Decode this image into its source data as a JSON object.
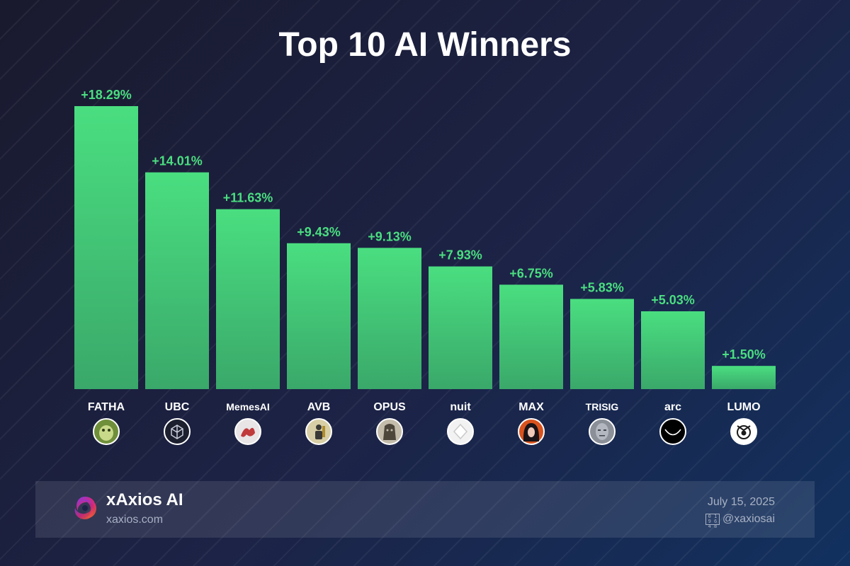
{
  "title": "Top 10 AI Winners",
  "chart_data": {
    "type": "bar",
    "title": "Top 10 AI Winners",
    "xlabel": "",
    "ylabel": "",
    "categories": [
      "FATHA",
      "UBC",
      "MemesAI",
      "AVB",
      "OPUS",
      "nuit",
      "MAX",
      "TRISIG",
      "arc",
      "LUMO"
    ],
    "values": [
      18.29,
      14.01,
      11.63,
      9.43,
      9.13,
      7.93,
      6.75,
      5.83,
      5.03,
      1.5
    ],
    "value_labels": [
      "+18.29%",
      "+14.01%",
      "+11.63%",
      "+9.43%",
      "+9.13%",
      "+7.93%",
      "+6.75%",
      "+5.83%",
      "+5.03%",
      "+1.50%"
    ],
    "ylim": [
      0,
      18.29
    ],
    "grid": false,
    "legend": "none",
    "bar_color_top": "#4ade80",
    "bar_color_bottom": "#3aa86a",
    "value_label_color": "#4ade80",
    "icons": [
      {
        "name": "frog-avatar-icon",
        "bg": "#6f8f3a",
        "fg": "#c8d98a"
      },
      {
        "name": "cube-logo-icon",
        "bg": "#1b1f2e",
        "fg": "#c8ccd8"
      },
      {
        "name": "red-dragon-icon",
        "bg": "#e9e4e6",
        "fg": "#c0393b"
      },
      {
        "name": "golden-figure-icon",
        "bg": "#d8cfa6",
        "fg": "#3b3a36"
      },
      {
        "name": "stone-idol-icon",
        "bg": "#c4bcab",
        "fg": "#4d463b"
      },
      {
        "name": "white-crystal-icon",
        "bg": "#f2f2f2",
        "fg": "#c9c9c9"
      },
      {
        "name": "anime-girl-icon",
        "bg": "#d9531e",
        "fg": "#1a1418"
      },
      {
        "name": "grey-face-icon",
        "bg": "#8a8f98",
        "fg": "#3f444c"
      },
      {
        "name": "smile-curve-icon",
        "bg": "#000000",
        "fg": "#ffffff"
      },
      {
        "name": "eye-emblem-icon",
        "bg": "#ffffff",
        "fg": "#1a1a1a"
      }
    ]
  },
  "footer": {
    "brand_name": "xAxios AI",
    "brand_site": "xaxios.com",
    "date": "July 15, 2025",
    "handle": "@xaxiosai",
    "handle_icon_glyph": "0 1 9 6 4 8",
    "logo_colors": [
      "#7c3aed",
      "#db2777",
      "#f97316"
    ]
  }
}
